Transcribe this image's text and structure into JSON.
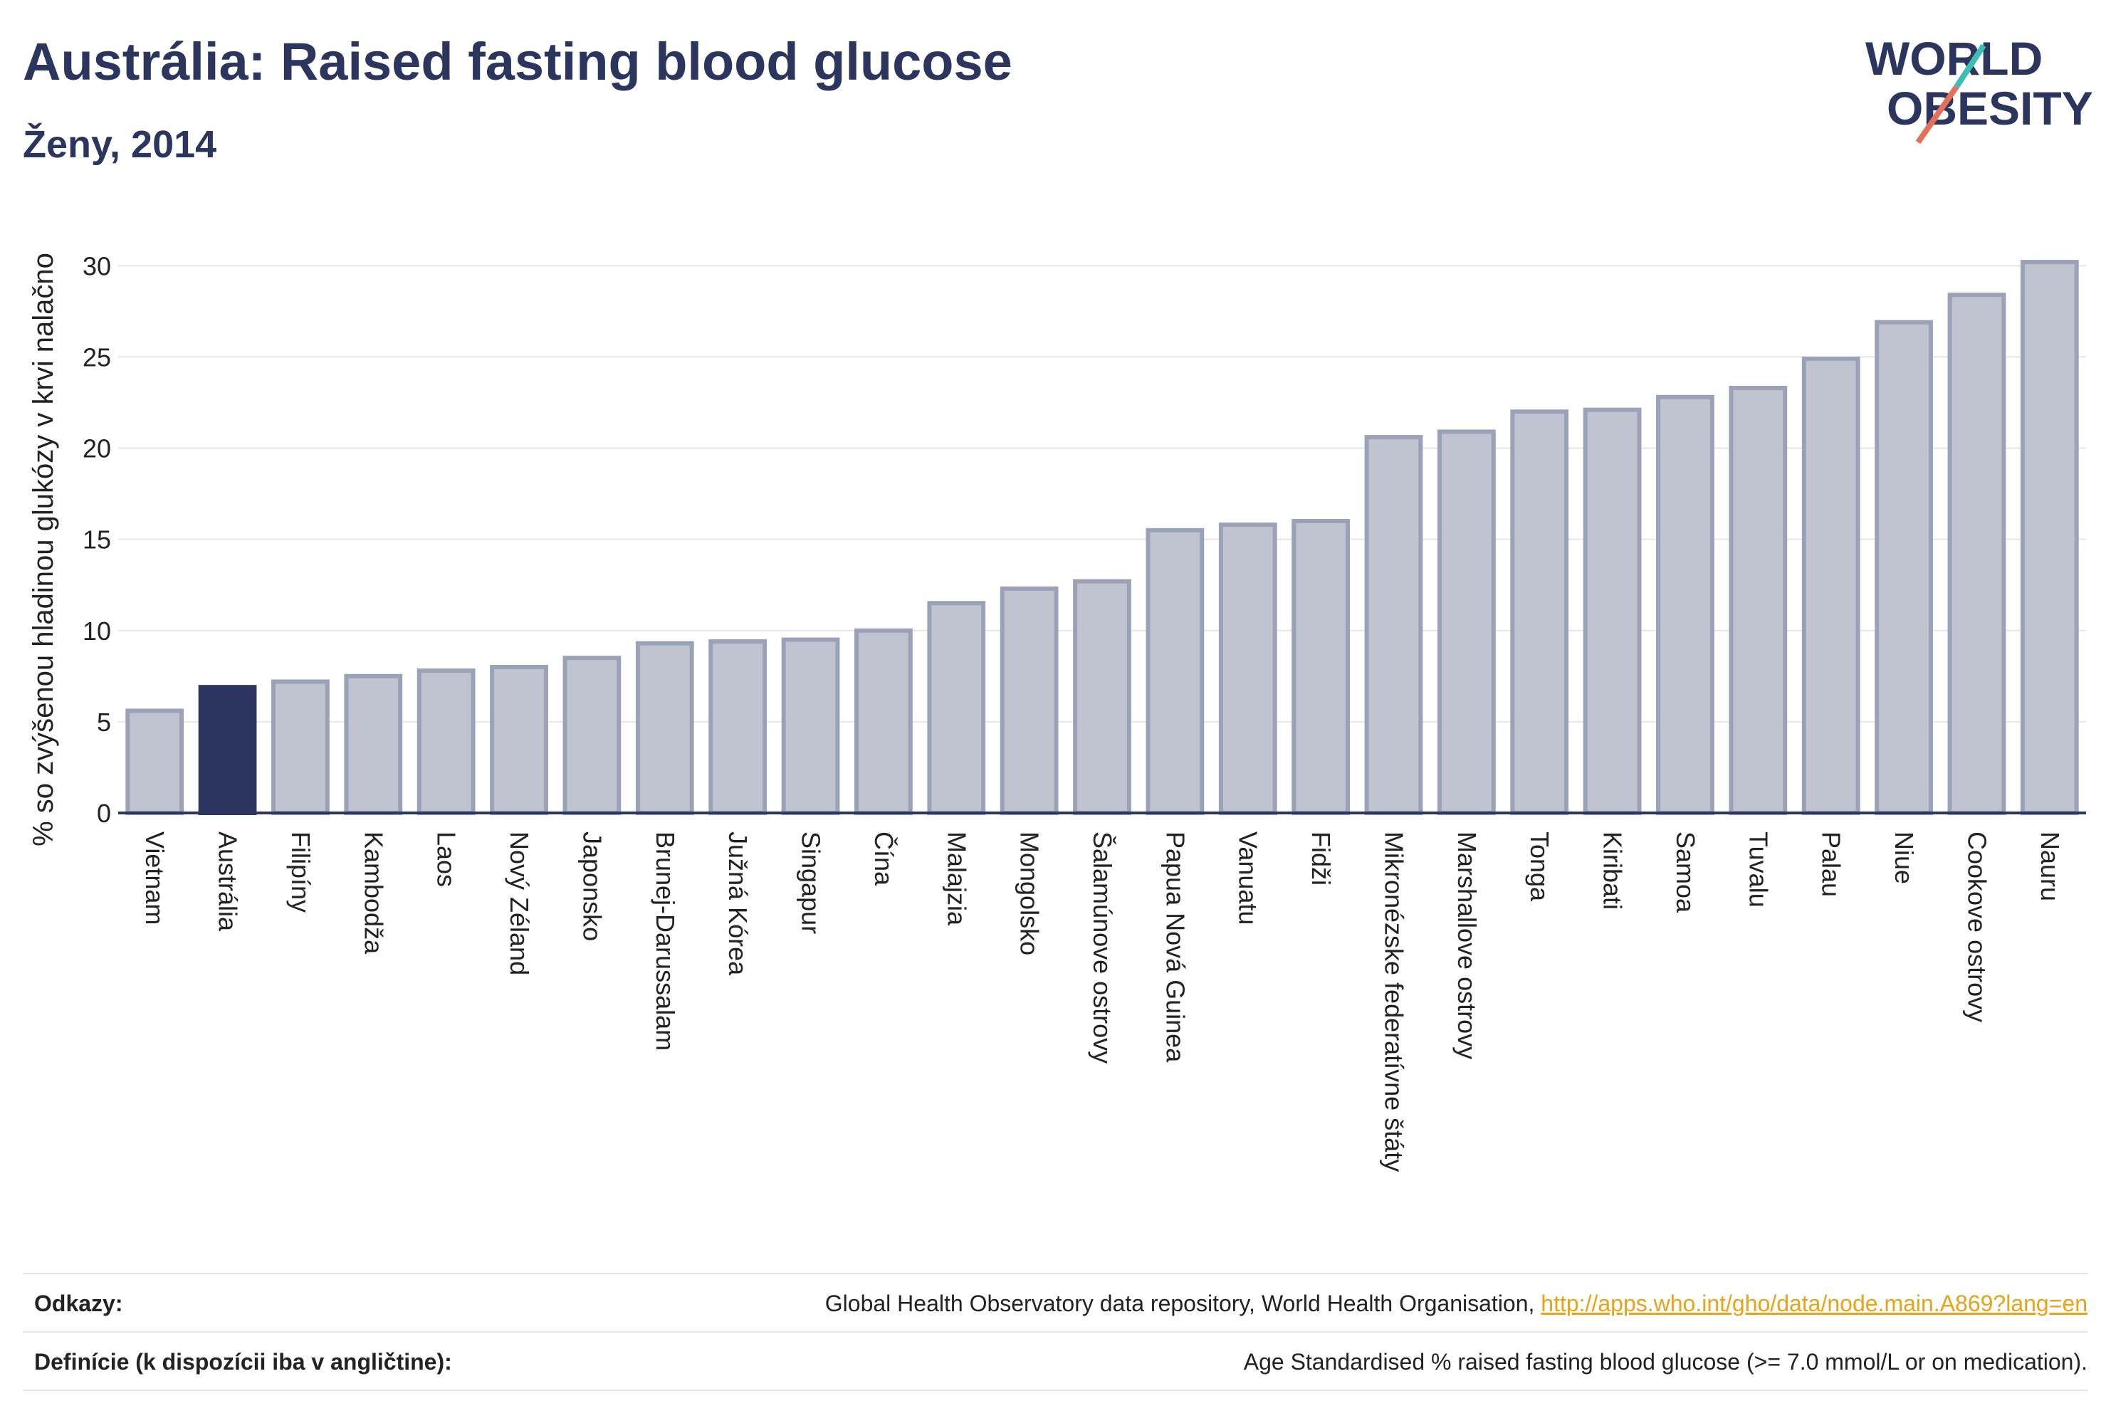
{
  "header": {
    "title": "Austrália: Raised fasting blood glucose",
    "subtitle": "Ženy, 2014"
  },
  "logo": {
    "line1": "WORLD",
    "line2": "OBESITY"
  },
  "colors": {
    "highlight": "#2b355e",
    "bar": "#c0c3d0",
    "bar_stroke": "#9ba1b8",
    "axis": "#2b355e"
  },
  "chart_data": {
    "type": "bar",
    "title": "Austrália: Raised fasting blood glucose",
    "subtitle": "Ženy, 2014",
    "xlabel": "",
    "ylabel": "% so zvýšenou hladinou glukózy v krvi nalačno",
    "ylim": [
      0,
      32
    ],
    "yticks": [
      0,
      5,
      10,
      15,
      20,
      25,
      30
    ],
    "grid": true,
    "highlight": "Austrália",
    "categories": [
      "Vietnam",
      "Austrália",
      "Filipíny",
      "Kambodža",
      "Laos",
      "Nový Zéland",
      "Japonsko",
      "Brunej-Darussalam",
      "Južná Kórea",
      "Singapur",
      "Čína",
      "Malajzia",
      "Mongolsko",
      "Šalamúnove ostrovy",
      "Papua Nová Guinea",
      "Vanuatu",
      "Fidži",
      "Mikronézske federatívne štáty",
      "Marshallove ostrovy",
      "Tonga",
      "Kiribati",
      "Samoa",
      "Tuvalu",
      "Palau",
      "Niue",
      "Cookove ostrovy",
      "Nauru"
    ],
    "values": [
      5.6,
      6.9,
      7.2,
      7.5,
      7.8,
      8.0,
      8.5,
      9.3,
      9.4,
      9.5,
      10.0,
      11.5,
      12.3,
      12.7,
      15.5,
      15.8,
      16.0,
      20.6,
      20.9,
      22.0,
      22.1,
      22.8,
      23.3,
      24.9,
      26.9,
      28.4,
      30.2
    ]
  },
  "footer": {
    "references_label": "Odkazy:",
    "references_text": "Global Health Observatory data repository, World Health Organisation, ",
    "references_link": "http://apps.who.int/gho/data/node.main.A869?lang=en",
    "definitions_label": "Definície (k dispozícii iba v angličtine):",
    "definitions_text": "Age Standardised % raised fasting blood glucose (>= 7.0 mmol/L or on medication)."
  }
}
